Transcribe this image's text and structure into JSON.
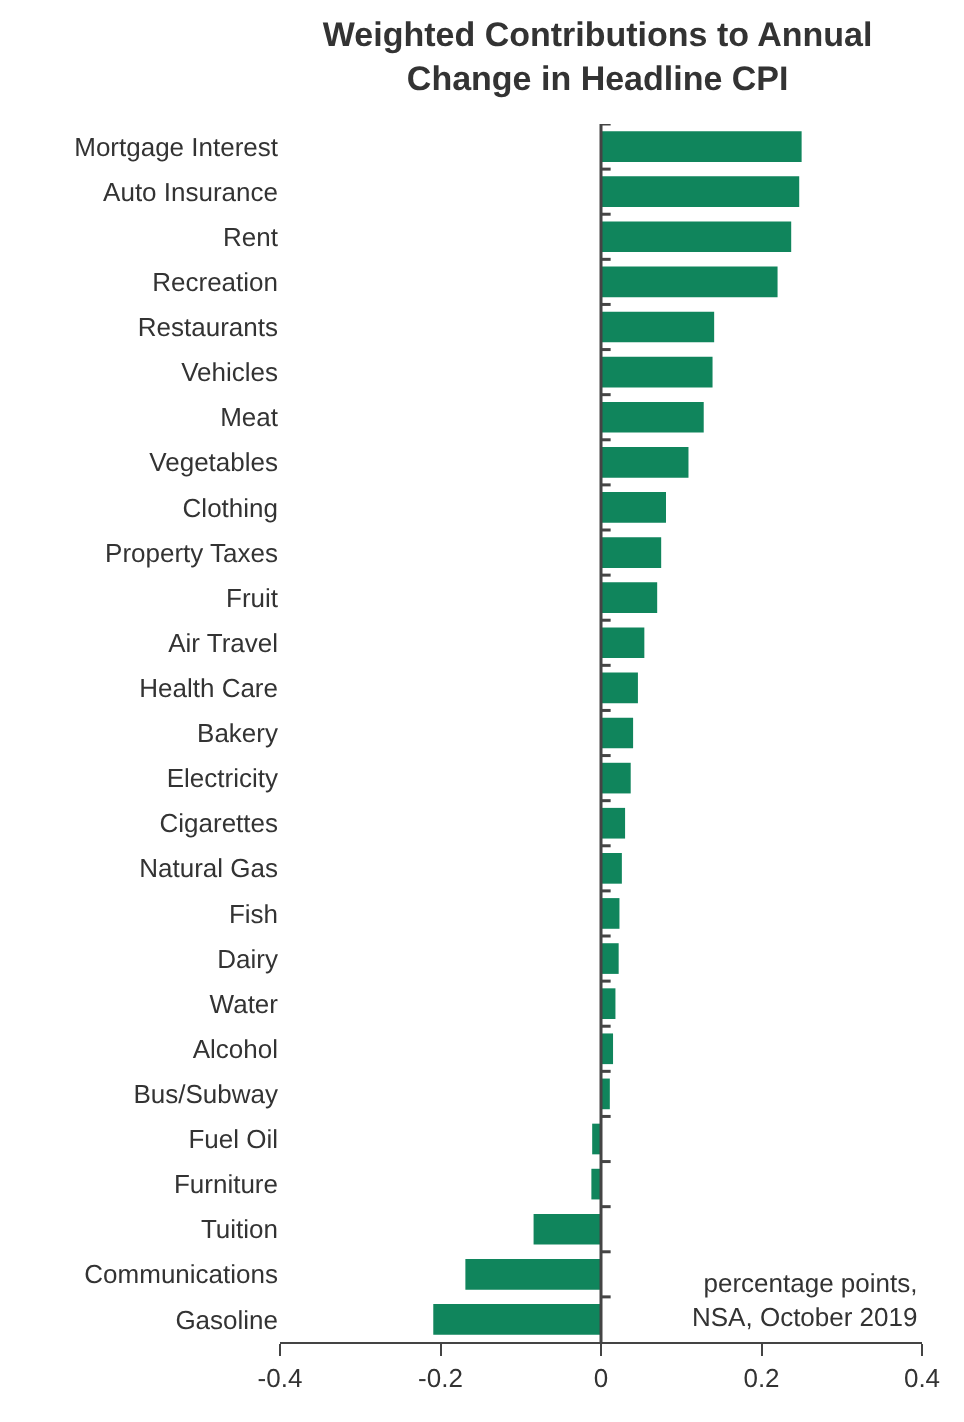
{
  "chart_data": {
    "type": "bar",
    "orientation": "horizontal",
    "title": "Weighted Contributions to Annual Change in Headline CPI",
    "categories": [
      "Mortgage Interest",
      "Auto Insurance",
      "Rent",
      "Recreation",
      "Restaurants",
      "Vehicles",
      "Meat",
      "Vegetables",
      "Clothing",
      "Property Taxes",
      "Fruit",
      "Air Travel",
      "Health Care",
      "Bakery",
      "Electricity",
      "Cigarettes",
      "Natural Gas",
      "Fish",
      "Dairy",
      "Water",
      "Alcohol",
      "Bus/Subway",
      "Fuel Oil",
      "Furniture",
      "Tuition",
      "Communications",
      "Gasoline"
    ],
    "values": [
      0.25,
      0.247,
      0.237,
      0.22,
      0.141,
      0.139,
      0.128,
      0.109,
      0.081,
      0.075,
      0.07,
      0.054,
      0.046,
      0.04,
      0.037,
      0.03,
      0.026,
      0.023,
      0.022,
      0.018,
      0.015,
      0.011,
      -0.011,
      -0.012,
      -0.084,
      -0.169,
      -0.209
    ],
    "color": "#10855c",
    "xlim": [
      -0.4,
      0.4
    ],
    "xticks": [
      -0.4,
      -0.2,
      0,
      0.2,
      0.4
    ],
    "legend": false,
    "ref_lines": [
      {
        "axis": "x",
        "value": 0,
        "color": "#444444"
      }
    ],
    "annotations": [
      "percentage points,\nNSA, October 2019"
    ]
  }
}
